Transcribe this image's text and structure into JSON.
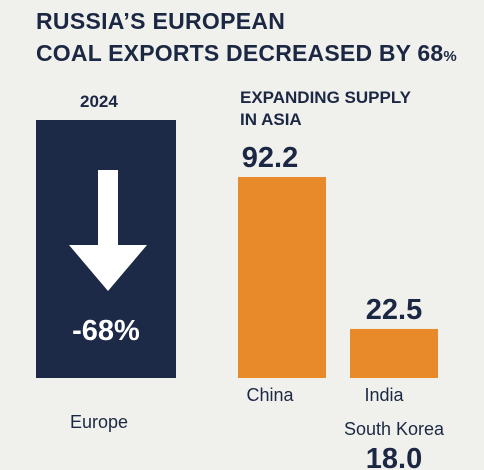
{
  "title": {
    "line1": "RUSSIA’S EUROPEAN",
    "line2_main": "COAL EXPORTS DECREASED BY 68",
    "line2_pct": "%"
  },
  "europe": {
    "year": "2024",
    "value_label": "-68%",
    "change_percent": -68,
    "label": "Europe",
    "icon": "down-arrow-icon",
    "box_color": "#1d2a47"
  },
  "asia": {
    "title_line1": "EXPANDING SUPPLY",
    "title_line2": "IN ASIA"
  },
  "chart_data": {
    "type": "bar",
    "title": "EXPANDING SUPPLY IN ASIA",
    "categories": [
      "China",
      "India",
      "South Korea"
    ],
    "values": [
      92.2,
      22.5,
      18.0
    ],
    "value_labels": [
      "92.2",
      "22.5",
      "18.0"
    ],
    "ylim": [
      0,
      100
    ],
    "bar_color": "#e8892a",
    "grid": false
  }
}
